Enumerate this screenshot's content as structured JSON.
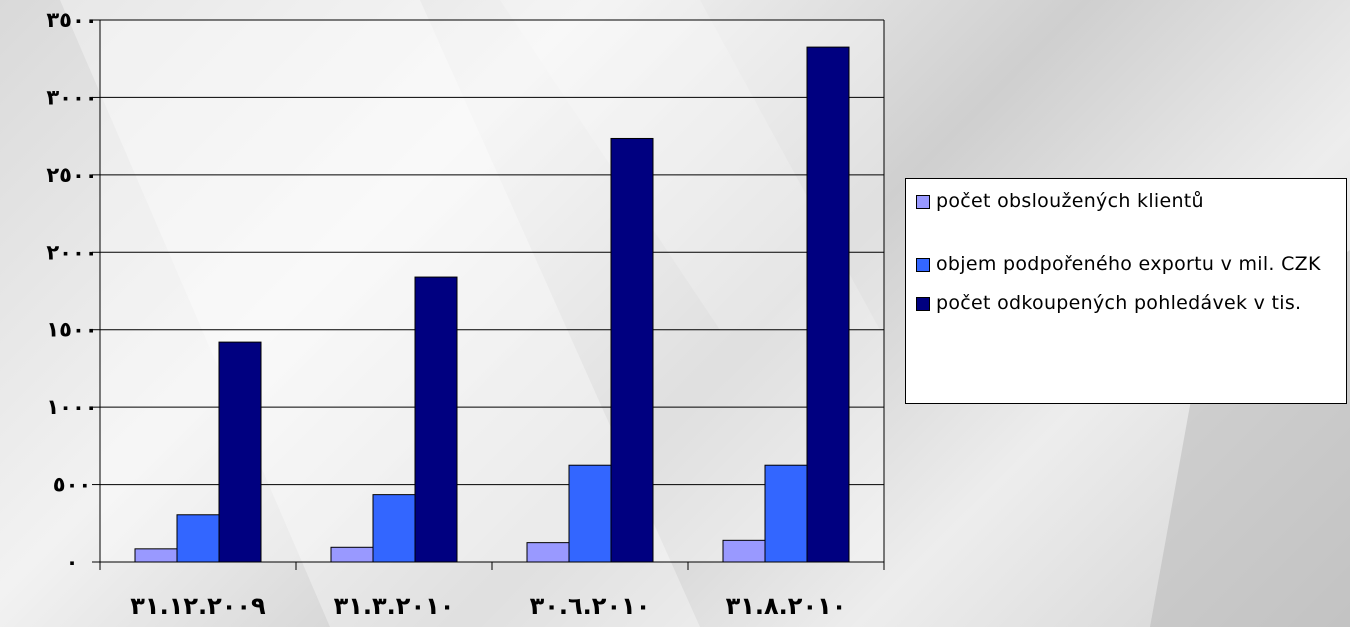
{
  "chart_data": {
    "type": "bar",
    "categories": [
      "٣١.١٢.٢٠٠٩",
      "٣١.٣.٢٠١٠",
      "٣٠.٦.٢٠١٠",
      "٣١.٨.٢٠١٠"
    ],
    "series": [
      {
        "name": "počet obsloužených klientů",
        "color": "#9999ff",
        "values": [
          85,
          95,
          125,
          140
        ]
      },
      {
        "name": "objem podpořeného exportu v mil. CZK",
        "color": "#3366ff",
        "values": [
          305,
          435,
          625,
          625
        ]
      },
      {
        "name": "počet odkoupených pohledávek v tis.",
        "color": "#000080",
        "values": [
          1420,
          1840,
          2735,
          3325
        ]
      }
    ],
    "ylim": [
      0,
      3500
    ],
    "yticks": [
      0,
      500,
      1000,
      1500,
      2000,
      2500,
      3000,
      3500
    ],
    "ytick_labels": [
      "٠",
      "٥٠٠",
      "١٠٠٠",
      "١٥٠٠",
      "٢٠٠٠",
      "٢٥٠٠",
      "٣٠٠٠",
      "٣٥٠٠"
    ],
    "grid": true,
    "legend_position": "right"
  }
}
